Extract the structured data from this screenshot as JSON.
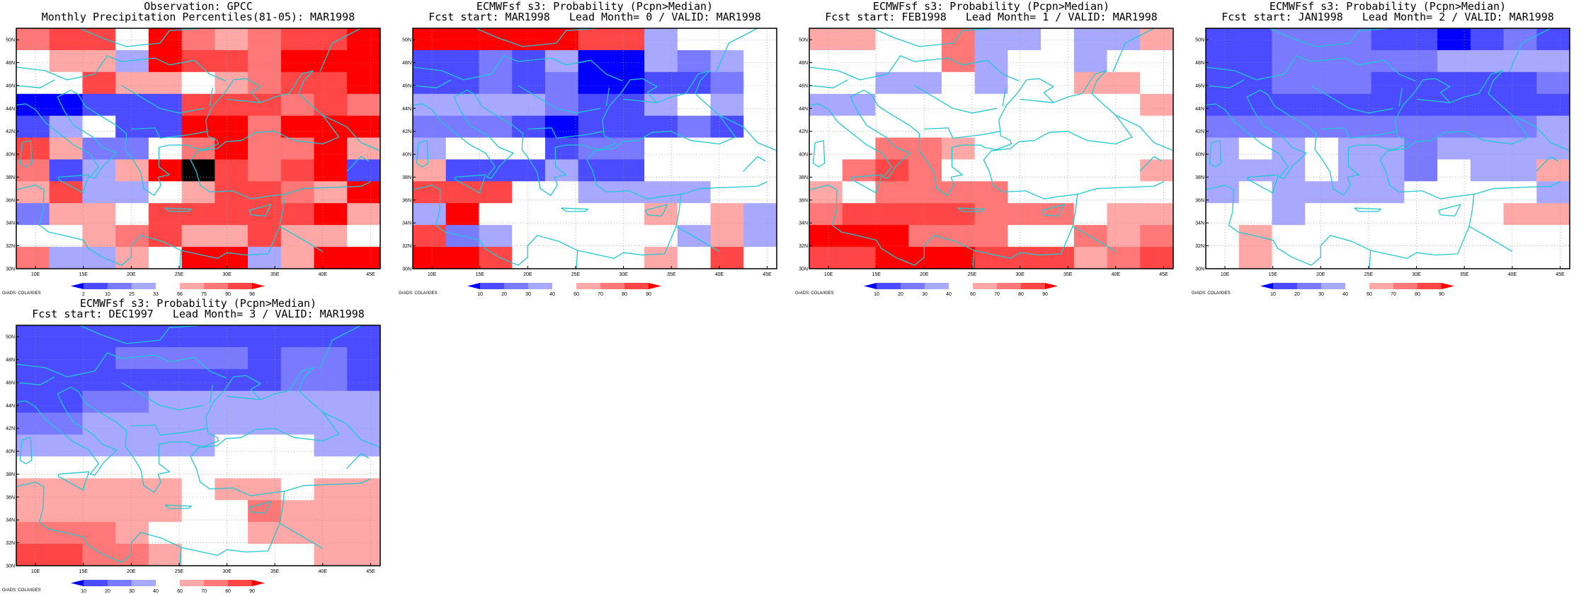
{
  "map_extent": {
    "lon": [
      8,
      46
    ],
    "lat": [
      30,
      51
    ]
  },
  "lon_labels": [
    "10E",
    "15E",
    "20E",
    "25E",
    "30E",
    "35E",
    "40E",
    "45E"
  ],
  "lat_labels": [
    "30N",
    "32N",
    "34N",
    "36N",
    "38N",
    "40N",
    "42N",
    "44N",
    "46N",
    "48N",
    "50N"
  ],
  "colors": {
    "coast": "#20c8d0",
    "frame": "#000000",
    "grid": "#9a9a9a"
  },
  "credit": "GrADS: COLA/IGES",
  "obs_colorbar": {
    "labels": [
      "2",
      "10",
      "25",
      "33",
      "66",
      "75",
      "90",
      "98"
    ],
    "colors": [
      "#0000ff",
      "#4b4bff",
      "#7a7aff",
      "#a8a8ff",
      "#ffffff",
      "#ffa8a8",
      "#ff7878",
      "#ff4646",
      "#ff0000"
    ]
  },
  "prob_colorbar": {
    "labels": [
      "10",
      "20",
      "30",
      "40",
      "60",
      "70",
      "80",
      "90"
    ],
    "colors": [
      "#0000ff",
      "#4b4bff",
      "#7a7aff",
      "#a8a8ff",
      "#ffffff",
      "#ffa8a8",
      "#ff7878",
      "#ff4646",
      "#ff0000"
    ]
  },
  "panels": [
    {
      "id": "obs",
      "title_line1": "Observation: GPCC",
      "title_line2": "Monthly Precipitation Percentiles(81-05): MAR1998",
      "colorbar": "obs",
      "grid": [
        "67748656778",
        "45538776888",
        "44755456778",
        "00111777676",
        "13411886888",
        "75224686685",
        "61358976781",
        "57334577658",
        "25547777785",
        "44567557554",
        "63354883588"
      ]
    },
    {
      "id": "lead0",
      "title_line1": "ECMWFsf s3: Probability (Pcpn>Median)",
      "title_line2": "Fcst start: MAR1998   Lead Month= 0 / VALID: MAR1998",
      "colorbar": "prob",
      "grid": [
        "88888773444",
        "11213003234",
        "11212001124",
        "33332113434",
        "22210111214",
        "34441224444",
        "51113114444",
        "77744333344",
        "38444445453",
        "72344444353",
        "88744445474"
      ]
    },
    {
      "id": "lead1",
      "title_line1": "ECMWFsf s3: Probability (Pcpn>Median)",
      "title_line2": "Fcst start: FEB1998   Lead Month= 1 / VALID: MAR1998",
      "colorbar": "prob",
      "grid": [
        "55446334335",
        "44446344344",
        "44334344554",
        "33444444445",
        "44444444444",
        "44665444444",
        "46764444445",
        "54666644444",
        "67777666455",
        "88866644656",
        "77888777567"
      ]
    },
    {
      "id": "lead2",
      "title_line1": "ECMWFsf s3: Probability (Pcpn>Median)",
      "title_line2": "Fcst start: JAN1998   Lead Month= 2 / VALID: MAR1998",
      "colorbar": "prob",
      "grid": [
        "11222110121",
        "11222223333",
        "11222111112",
        "11111111111",
        "22222222223",
        "34343323333",
        "33343324335",
        "34333344443",
        "44344444455",
        "45444444444",
        "45444444444"
      ]
    },
    {
      "id": "lead3",
      "title_line1": "ECMWFsf s3: Probability (Pcpn>Median)",
      "title_line2": "Fcst start: DEC1997   Lead Month= 3 / VALID: MAR1998",
      "colorbar": "prob",
      "grid": [
        "11111111111",
        "11122221221",
        "11111111221",
        "11223333333",
        "22333333333",
        "33333344433",
        "44444444444",
        "55555455455",
        "55555446555",
        "66654445555",
        "77665444455"
      ]
    }
  ]
}
